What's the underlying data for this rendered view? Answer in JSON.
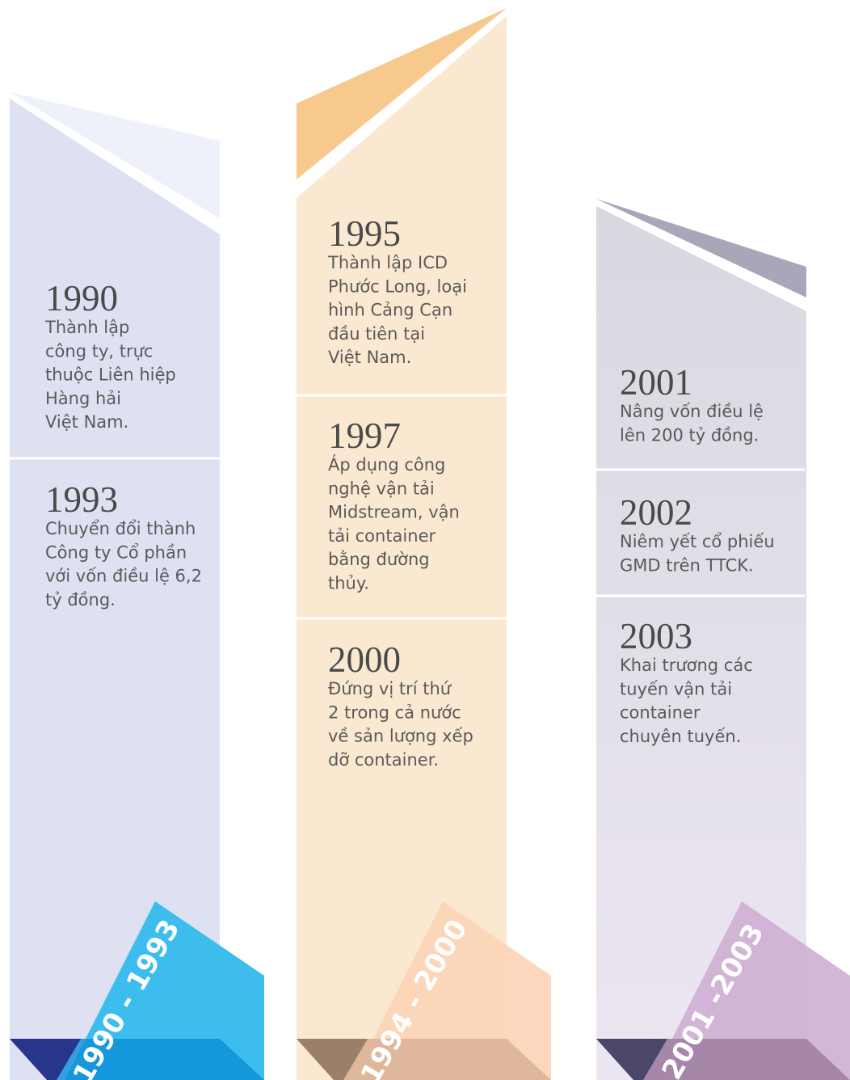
{
  "columns": [
    {
      "period": "1990 - 1993",
      "entries": [
        {
          "year": "1990",
          "lines": [
            "Thành lập",
            "công ty, trực",
            "thuộc Liên hiệp",
            "Hàng hải",
            "Việt Nam."
          ]
        },
        {
          "year": "1993",
          "lines": [
            "Chuyển đổi thành",
            "Công ty Cổ phần",
            "với vốn điều lệ 6,2",
            "tỷ đồng."
          ]
        }
      ]
    },
    {
      "period": "1994 - 2000",
      "entries": [
        {
          "year": "1995",
          "lines": [
            "Thành lập ICD",
            "Phước Long, loại",
            "hình Cảng Cạn",
            "đầu tiên tại",
            "Việt Nam."
          ]
        },
        {
          "year": "1997",
          "lines": [
            "Áp dụng công",
            "nghệ vận tải",
            "Midstream, vận",
            "tải container",
            "bằng đường",
            "thủy."
          ]
        },
        {
          "year": "2000",
          "lines": [
            "Đứng vị trí thứ",
            "2 trong cả nước",
            "về sản lượng xếp",
            "dỡ container."
          ]
        }
      ]
    },
    {
      "period": "2001 -2003",
      "entries": [
        {
          "year": "2001",
          "lines": [
            "Nâng vốn điều lệ",
            "lên 200 tỷ đồng."
          ]
        },
        {
          "year": "2002",
          "lines": [
            "Niêm yết cổ phiếu",
            "GMD trên TTCK."
          ]
        },
        {
          "year": "2003",
          "lines": [
            "Khai trương các",
            "tuyến vận tải",
            "container",
            "chuyên tuyến."
          ]
        }
      ]
    }
  ]
}
